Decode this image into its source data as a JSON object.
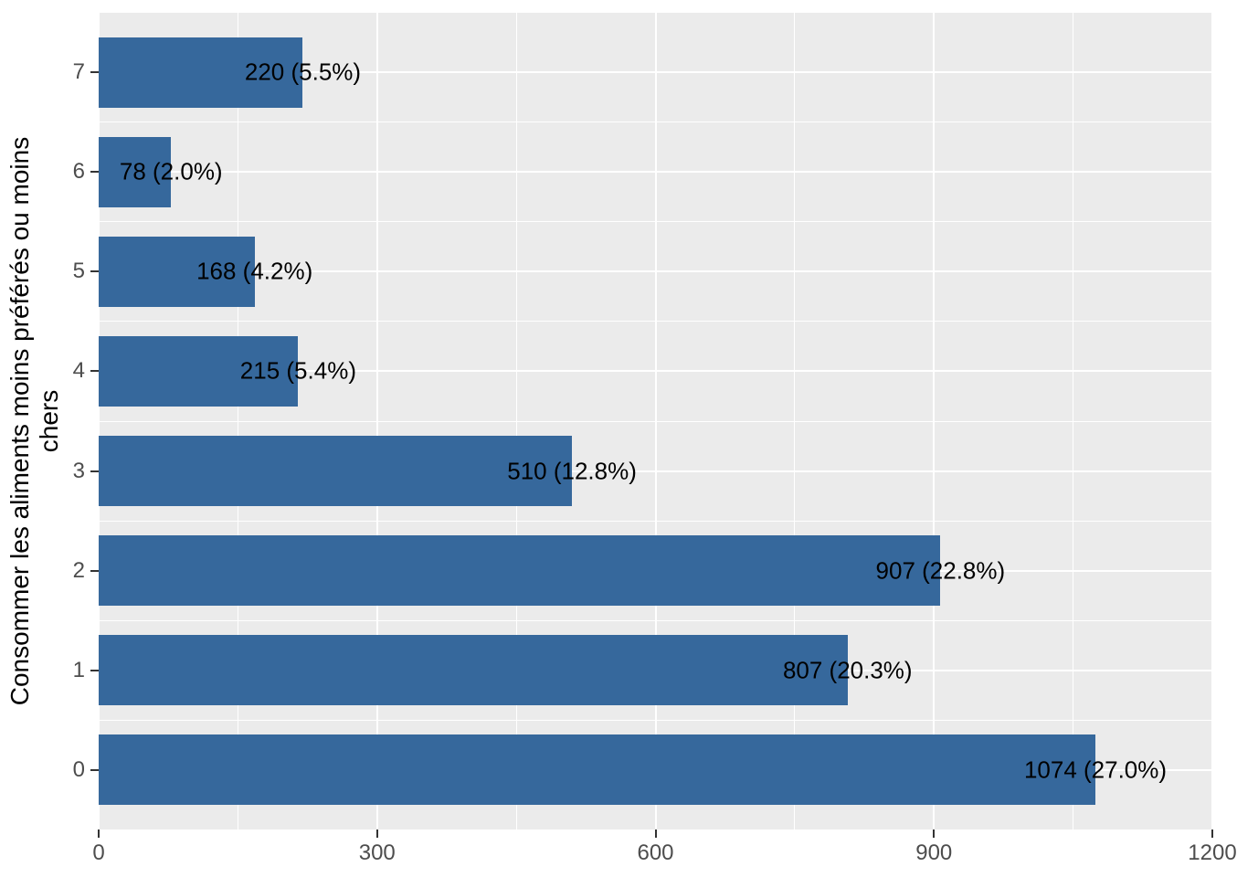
{
  "chart_data": {
    "type": "bar",
    "orientation": "horizontal",
    "title": "",
    "xlabel": "",
    "ylabel": "Consommer les aliments moins préférés ou moins\nchers",
    "categories_top_to_bottom": [
      "7",
      "6",
      "5",
      "4",
      "3",
      "2",
      "1",
      "0"
    ],
    "values_top_to_bottom": [
      220,
      78,
      168,
      215,
      510,
      907,
      807,
      1074
    ],
    "bar_labels_top_to_bottom": [
      "220 (5.5%)",
      "78 (2.0%)",
      "168 (4.2%)",
      "215 (5.4%)",
      "510 (12.8%)",
      "907 (22.8%)",
      "807 (20.3%)",
      "1074 (27.0%)"
    ],
    "x_ticks": [
      0,
      300,
      600,
      900,
      1200
    ],
    "x_minor_gridlines": [
      150,
      450,
      750,
      1050
    ],
    "xlim": [
      0,
      1200
    ],
    "grid": "on",
    "legend": "none",
    "colors": {
      "bar_fill": "#36689C",
      "panel_background": "#EBEBEB",
      "gridline": "#FFFFFF",
      "tick_label": "#4D4D4D",
      "bar_label": "#000000",
      "axis_title": "#000000",
      "tick_mark": "#333333",
      "figure_background": "#FFFFFF"
    }
  }
}
